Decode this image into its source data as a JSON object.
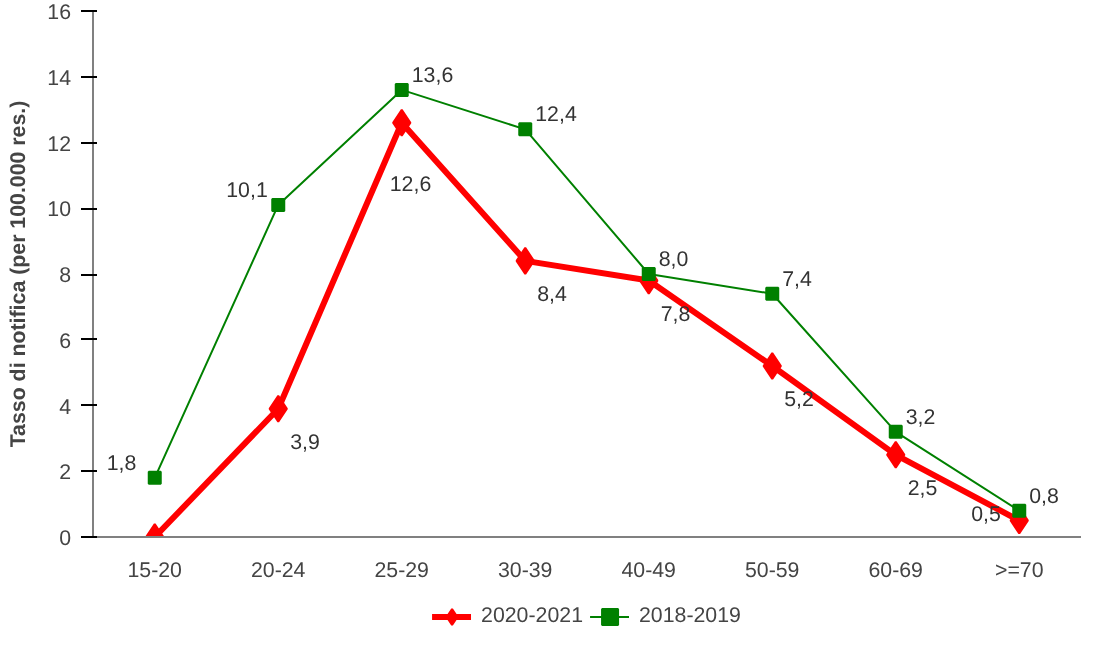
{
  "chart_data": {
    "type": "line",
    "ylabel": "Tasso di notifica (per 100.000 res.)",
    "categories": [
      "15-20",
      "20-24",
      "25-29",
      "30-39",
      "40-49",
      "50-59",
      "60-69",
      ">=70"
    ],
    "ylim": [
      0,
      16
    ],
    "yticks": [
      0,
      2,
      4,
      6,
      8,
      10,
      12,
      14,
      16
    ],
    "grid": false,
    "legend": "bottom",
    "series": [
      {
        "name": "2020-2021",
        "color": "#ff0000",
        "marker": "diamond",
        "values": [
          0,
          3.9,
          12.6,
          8.4,
          7.8,
          5.2,
          2.5,
          0.5
        ],
        "value_labels": [
          null,
          "3,9",
          "12,6",
          "8,4",
          "7,8",
          "5,2",
          "2,5",
          "0,5"
        ]
      },
      {
        "name": "2018-2019",
        "color": "#008000",
        "marker": "square",
        "values": [
          1.8,
          10.1,
          13.6,
          12.4,
          8.0,
          7.4,
          3.2,
          0.8
        ],
        "value_labels": [
          "1,8",
          "10,1",
          "13,6",
          "12,4",
          "8,0",
          "7,4",
          "3,2",
          "0,8"
        ]
      }
    ]
  }
}
